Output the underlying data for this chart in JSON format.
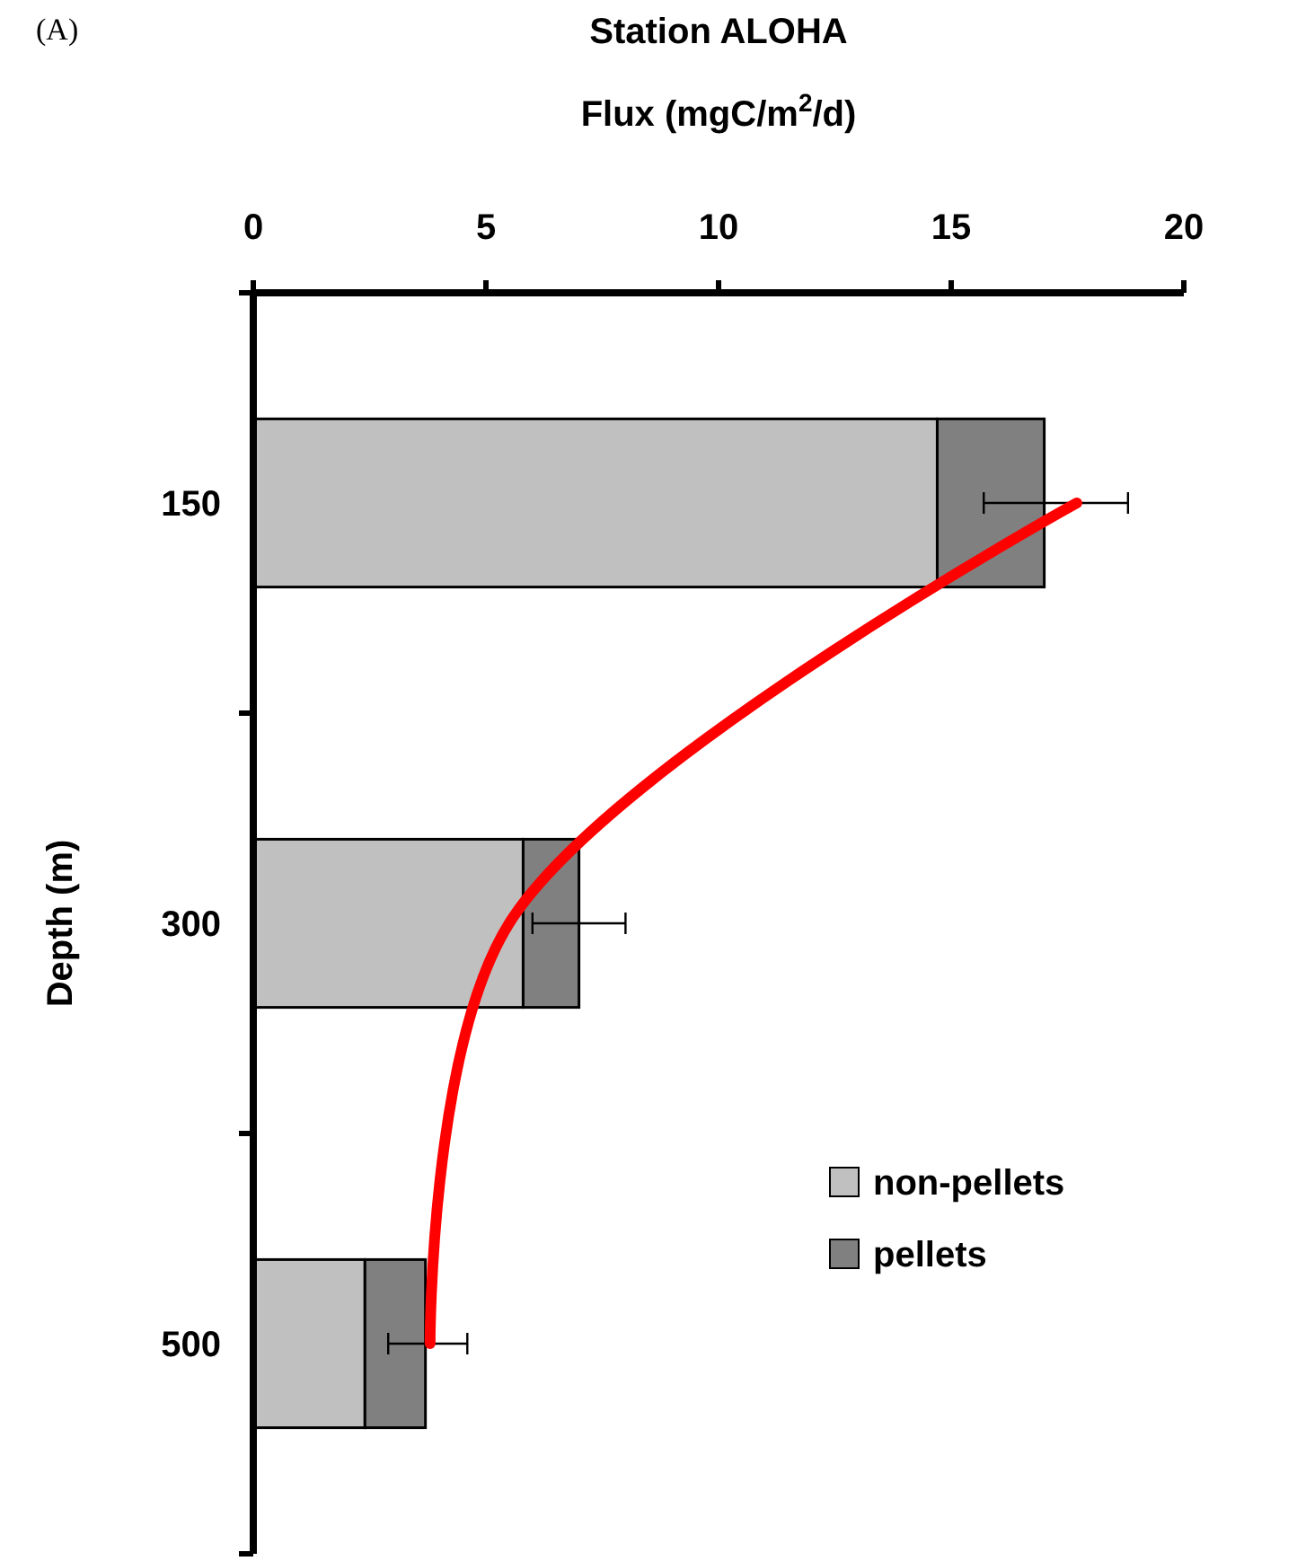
{
  "chart_data": {
    "type": "bar",
    "orientation": "horizontal",
    "stacked": true,
    "title": "Station ALOHA",
    "xlabel": "Flux (mgC/m$^{2}$/d)",
    "ylabel": "Depth (m)",
    "annotations": [
      "(A)"
    ],
    "categories": [
      "150",
      "300",
      "500"
    ],
    "xlim": [
      0,
      20
    ],
    "xticks": [
      0,
      5,
      10,
      15,
      20
    ],
    "grid": false,
    "legend": "right",
    "series": [
      {
        "name": "non-pellets",
        "color": "#c0c0c0",
        "values": [
          14.7,
          5.8,
          2.4
        ]
      },
      {
        "name": "pellets",
        "color": "#808080",
        "values": [
          2.3,
          1.2,
          1.3
        ],
        "errors": [
          [
            15.7,
            18.8
          ],
          [
            6.0,
            8.0
          ],
          [
            2.9,
            4.6
          ]
        ]
      },
      {
        "type": "line",
        "color": "#ff0000",
        "values": [
          17.7,
          5.5,
          3.8
        ]
      }
    ]
  }
}
